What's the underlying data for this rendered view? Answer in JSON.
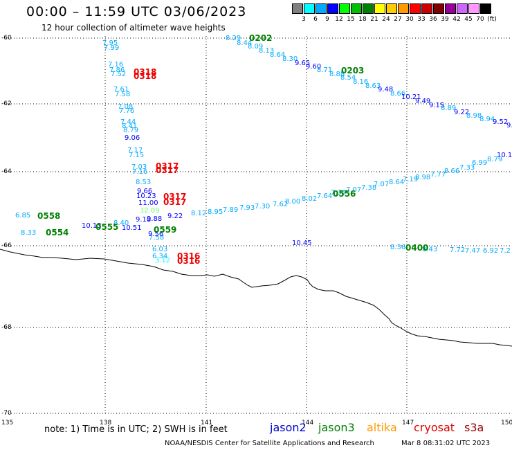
{
  "header": {
    "title": "00:00 – 11:59 UTC 03/06/2023",
    "subtitle": "12 hour collection of altimeter wave heights"
  },
  "color_scale": {
    "unit_label": "(ft)",
    "bins": [
      {
        "label": "3",
        "color": "#808080"
      },
      {
        "label": "6",
        "color": "#00ffff"
      },
      {
        "label": "9",
        "color": "#00aaff"
      },
      {
        "label": "12",
        "color": "#0000ff"
      },
      {
        "label": "15",
        "color": "#00ff00"
      },
      {
        "label": "18",
        "color": "#00c000"
      },
      {
        "label": "21",
        "color": "#008000"
      },
      {
        "label": "24",
        "color": "#ffff00"
      },
      {
        "label": "27",
        "color": "#ffcc00"
      },
      {
        "label": "30",
        "color": "#ff9900"
      },
      {
        "label": "33",
        "color": "#ff0000"
      },
      {
        "label": "36",
        "color": "#cc0000"
      },
      {
        "label": "39",
        "color": "#800000"
      },
      {
        "label": "42",
        "color": "#990099"
      },
      {
        "label": "45",
        "color": "#cc66ff"
      },
      {
        "label": "70",
        "color": "#ff99ff"
      },
      {
        "label": "",
        "color": "#000000"
      }
    ]
  },
  "axes": {
    "lat_labels": [
      "-60",
      "-62",
      "-64",
      "-66",
      "-68",
      "-70"
    ],
    "lon_labels": [
      "135",
      "138",
      "141",
      "144",
      "147",
      "150"
    ]
  },
  "footer": {
    "note": "note: 1) Time is in UTC; 2) SWH is in feet",
    "satellites": [
      {
        "name": "jason2",
        "color": "#0000cc"
      },
      {
        "name": "jason3",
        "color": "#008000"
      },
      {
        "name": "altika",
        "color": "#ff9900"
      },
      {
        "name": "cryosat",
        "color": "#dd0000"
      },
      {
        "name": "s3a",
        "color": "#990000"
      }
    ],
    "credit": "NOAA/NESDIS Center for Satellite Applications and Research",
    "timestamp": "Mar 8 08:31:02 UTC 2023"
  },
  "track_times": [
    {
      "text": "0202",
      "color": "#008000"
    },
    {
      "text": "0203",
      "color": "#008000"
    },
    {
      "text": "0318",
      "color": "#ee0000"
    },
    {
      "text": "0318",
      "color": "#ee0000"
    },
    {
      "text": "0317",
      "color": "#ee0000"
    },
    {
      "text": "0317",
      "color": "#ee0000"
    },
    {
      "text": "0317",
      "color": "#ee0000"
    },
    {
      "text": "0317",
      "color": "#ee0000"
    },
    {
      "text": "0556",
      "color": "#008000"
    },
    {
      "text": "0558",
      "color": "#008000"
    },
    {
      "text": "0554",
      "color": "#008000"
    },
    {
      "text": "0555",
      "color": "#008000"
    },
    {
      "text": "0559",
      "color": "#008000"
    },
    {
      "text": "0400",
      "color": "#008000"
    },
    {
      "text": "0316",
      "color": "#ee0000"
    },
    {
      "text": "0316",
      "color": "#ee0000"
    }
  ],
  "observations": [
    {
      "v": "8.29",
      "c": "#00aaff"
    },
    {
      "v": "8.44",
      "c": "#00aaff"
    },
    {
      "v": "8.09",
      "c": "#00aaff"
    },
    {
      "v": "8.13",
      "c": "#00aaff"
    },
    {
      "v": "8.64",
      "c": "#00aaff"
    },
    {
      "v": "8.30",
      "c": "#00aaff"
    },
    {
      "v": "9.65",
      "c": "#0000ff"
    },
    {
      "v": "9.60",
      "c": "#0000ff"
    },
    {
      "v": "8.71",
      "c": "#00aaff"
    },
    {
      "v": "8.88",
      "c": "#00aaff"
    },
    {
      "v": "8.54",
      "c": "#00aaff"
    },
    {
      "v": "8.16",
      "c": "#00aaff"
    },
    {
      "v": "8.63",
      "c": "#00aaff"
    },
    {
      "v": "9.48",
      "c": "#0000ff"
    },
    {
      "v": "8.66",
      "c": "#00aaff"
    },
    {
      "v": "10.21",
      "c": "#0000ff"
    },
    {
      "v": "9.49",
      "c": "#0000ff"
    },
    {
      "v": "9.15",
      "c": "#0000ff"
    },
    {
      "v": "8.89",
      "c": "#00aaff"
    },
    {
      "v": "9.22",
      "c": "#0000ff"
    },
    {
      "v": "8.98",
      "c": "#00aaff"
    },
    {
      "v": "8.94",
      "c": "#00aaff"
    },
    {
      "v": "9.52",
      "c": "#0000ff"
    },
    {
      "v": "9.",
      "c": "#0000ff"
    },
    {
      "v": "7.95",
      "c": "#00aaff"
    },
    {
      "v": "7.99",
      "c": "#00aaff"
    },
    {
      "v": "7.16",
      "c": "#00aaff"
    },
    {
      "v": "7.86",
      "c": "#00aaff"
    },
    {
      "v": "7.52",
      "c": "#00aaff"
    },
    {
      "v": "7.61",
      "c": "#00aaff"
    },
    {
      "v": "7.58",
      "c": "#00aaff"
    },
    {
      "v": "7.08",
      "c": "#00aaff"
    },
    {
      "v": "7.76",
      "c": "#00aaff"
    },
    {
      "v": "7.44",
      "c": "#00aaff"
    },
    {
      "v": "8.41",
      "c": "#00aaff"
    },
    {
      "v": "8.79",
      "c": "#00aaff"
    },
    {
      "v": "9.06",
      "c": "#0000ff"
    },
    {
      "v": "7.17",
      "c": "#00aaff"
    },
    {
      "v": "7.15",
      "c": "#00aaff"
    },
    {
      "v": "7.03",
      "c": "#00aaff"
    },
    {
      "v": "7.16",
      "c": "#00aaff"
    },
    {
      "v": "8.53",
      "c": "#00aaff"
    },
    {
      "v": "9.66",
      "c": "#0000ff"
    },
    {
      "v": "10.23",
      "c": "#0000ff"
    },
    {
      "v": "11.00",
      "c": "#0000ff"
    },
    {
      "v": "12.09",
      "c": "#66ff66"
    },
    {
      "v": "9.18",
      "c": "#0000ff"
    },
    {
      "v": "9.88",
      "c": "#0000ff"
    },
    {
      "v": "9.22",
      "c": "#0000ff"
    },
    {
      "v": "10.1",
      "c": "#0000ff"
    },
    {
      "v": "8.79",
      "c": "#00aaff"
    },
    {
      "v": "6.99",
      "c": "#00aaff"
    },
    {
      "v": "7.33",
      "c": "#00aaff"
    },
    {
      "v": "8.66",
      "c": "#00aaff"
    },
    {
      "v": "7.77",
      "c": "#00aaff"
    },
    {
      "v": "8.98",
      "c": "#00aaff"
    },
    {
      "v": "7.19",
      "c": "#00aaff"
    },
    {
      "v": "8.64",
      "c": "#00aaff"
    },
    {
      "v": "7.07",
      "c": "#00aaff"
    },
    {
      "v": "7.38",
      "c": "#00aaff"
    },
    {
      "v": "7.07",
      "c": "#00aaff"
    },
    {
      "v": "7.34",
      "c": "#00aaff"
    },
    {
      "v": "7.64",
      "c": "#00aaff"
    },
    {
      "v": "8.02",
      "c": "#00aaff"
    },
    {
      "v": "8.00",
      "c": "#00aaff"
    },
    {
      "v": "7.62",
      "c": "#00aaff"
    },
    {
      "v": "7.30",
      "c": "#00aaff"
    },
    {
      "v": "7.93",
      "c": "#00aaff"
    },
    {
      "v": "7.89",
      "c": "#00aaff"
    },
    {
      "v": "8.95",
      "c": "#00aaff"
    },
    {
      "v": "8.12",
      "c": "#00aaff"
    },
    {
      "v": "6.85",
      "c": "#00aaff"
    },
    {
      "v": "8.33",
      "c": "#00aaff"
    },
    {
      "v": "10.13",
      "c": "#0000ff"
    },
    {
      "v": "8.40",
      "c": "#00aaff"
    },
    {
      "v": "10.51",
      "c": "#0000ff"
    },
    {
      "v": "7.58",
      "c": "#00aaff"
    },
    {
      "v": "9.56",
      "c": "#0000ff"
    },
    {
      "v": "10.45",
      "c": "#0000ff"
    },
    {
      "v": "8.36",
      "c": "#00aaff"
    },
    {
      "v": "7.72",
      "c": "#00aaff"
    },
    {
      "v": "7.47",
      "c": "#00aaff"
    },
    {
      "v": "6.92",
      "c": "#00aaff"
    },
    {
      "v": "7.2",
      "c": "#00aaff"
    },
    {
      "v": "8.43",
      "c": "#00aaff"
    },
    {
      "v": "6.03",
      "c": "#00aaff"
    },
    {
      "v": "6.34",
      "c": "#00aaff"
    },
    {
      "v": "3.12",
      "c": "#00ffff"
    }
  ]
}
